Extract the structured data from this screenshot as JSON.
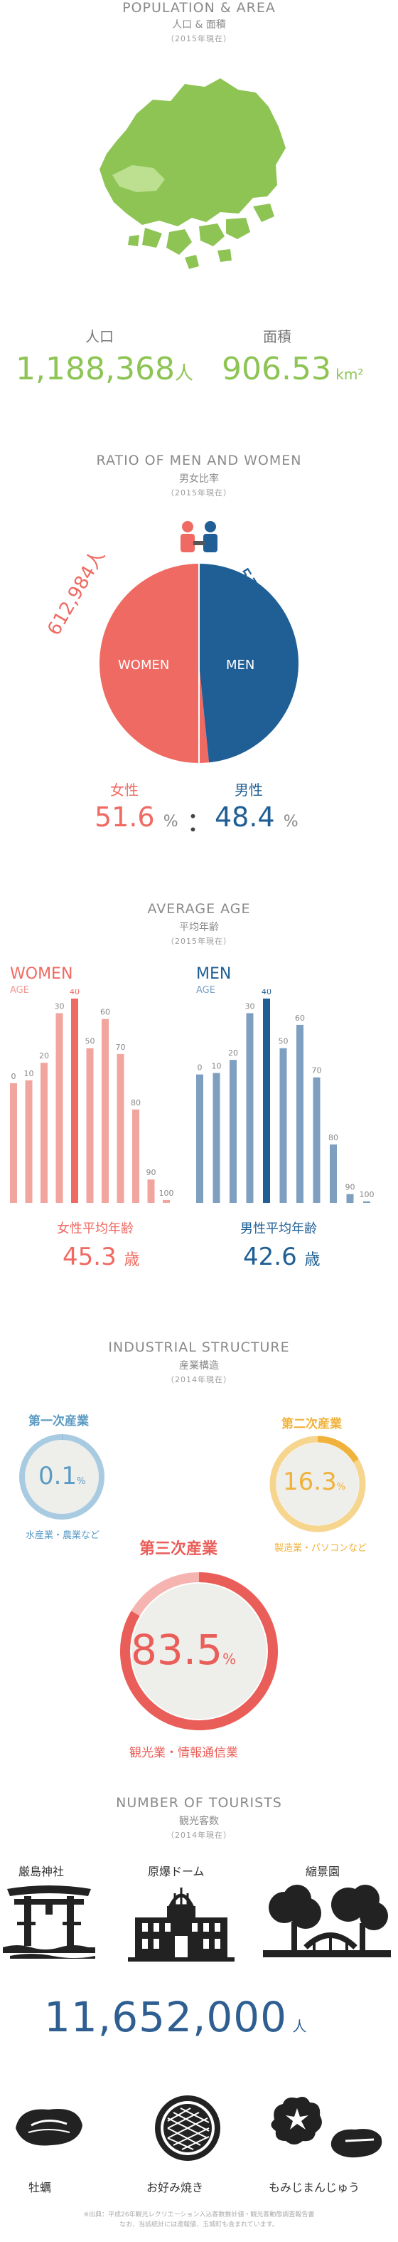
{
  "population": {
    "title": "POPULATION & AREA",
    "subtitle": "人口 & 面積",
    "date": "（2015年現在）",
    "pop_label": "人口",
    "area_label": "面積",
    "population_value": "1,188,368",
    "population_unit": "人",
    "area_value": "906.53",
    "area_unit": "km²",
    "map_color": "#8dc454"
  },
  "gender": {
    "title": "RATIO OF MEN AND WOMEN",
    "subtitle": "男女比率",
    "date": "（2015年現在）",
    "women_count": "612,984人",
    "men_count": "575,141人",
    "women_label": "WOMEN",
    "men_label": "MEN",
    "women_jp": "女性",
    "men_jp": "男性",
    "women_pct": "51.6",
    "men_pct": "48.4",
    "pct_sign": "%",
    "separator": "：",
    "colors": {
      "women": "#ef6a62",
      "men": "#1f5f95"
    }
  },
  "age": {
    "title": "AVERAGE AGE",
    "subtitle": "平均年齢",
    "date": "（2015年現在）",
    "women_title": "WOMEN",
    "men_title": "MEN",
    "age_axis": "AGE",
    "women_avg_label": "女性平均年齢",
    "men_avg_label": "男性平均年齢",
    "women_avg": "45.3",
    "men_avg": "42.6",
    "avg_unit": "歳"
  },
  "chart_data": [
    {
      "type": "bar",
      "title": "WOMEN",
      "xlabel": "AGE",
      "categories": [
        "0",
        "10",
        "20",
        "30",
        "40",
        "50",
        "60",
        "70",
        "80",
        "90",
        "100"
      ],
      "values": [
        82,
        84,
        96,
        130,
        140,
        106,
        126,
        102,
        64,
        16,
        2
      ],
      "highlight": "40"
    },
    {
      "type": "bar",
      "title": "MEN",
      "xlabel": "AGE",
      "categories": [
        "0",
        "10",
        "20",
        "30",
        "40",
        "50",
        "60",
        "70",
        "80",
        "90",
        "100"
      ],
      "values": [
        88,
        89,
        98,
        130,
        140,
        106,
        122,
        86,
        40,
        6,
        1
      ],
      "highlight": "40"
    }
  ],
  "industry": {
    "title": "INDUSTRIAL STRUCTURE",
    "subtitle": "産業構造",
    "date": "（2014年現在）",
    "primary": {
      "name": "第一次産業",
      "value": "0.1",
      "pct": 0.1,
      "unit": "%",
      "caption": "水産業・農業など",
      "color": "#5b9bc4"
    },
    "secondary": {
      "name": "第二次産業",
      "value": "16.3",
      "pct": 16.3,
      "unit": "%",
      "caption": "製造業・パソコンなど",
      "color": "#f0b23a"
    },
    "tertiary": {
      "name": "第三次産業",
      "value": "83.5",
      "pct": 83.5,
      "unit": "%",
      "caption": "観光業・情報通信業",
      "color": "#ea5e59"
    }
  },
  "tourists": {
    "title": "NUMBER OF TOURISTS",
    "subtitle": "観光客数",
    "date": "（2014年現在）",
    "places": [
      "厳島神社",
      "原爆ドーム",
      "縮景園"
    ],
    "count": "11,652,000",
    "unit": "人",
    "foods": [
      "牡蠣",
      "お好み焼き",
      "もみじまんじゅう"
    ],
    "footnote_1": "※出典：平成26年観光レクリエーション入込客数推計値・観光客動態調査報告書",
    "footnote_2": "なお、当該統計には速報値、玉城町も含まれています。"
  }
}
